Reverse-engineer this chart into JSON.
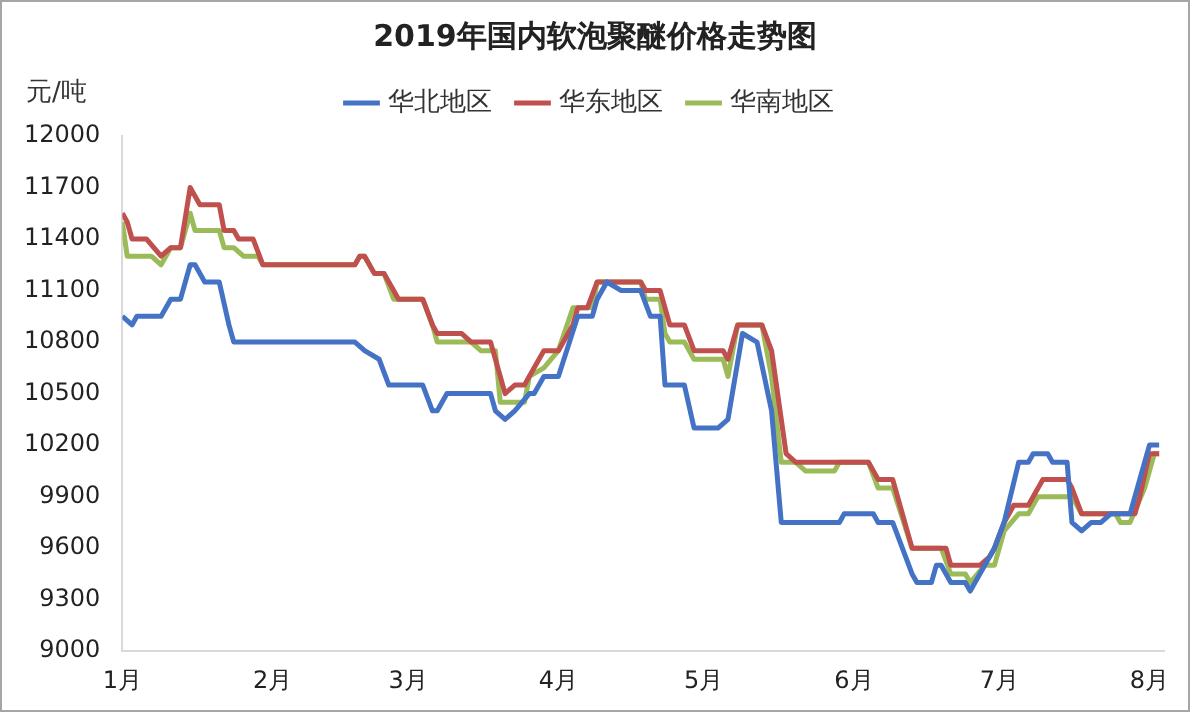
{
  "chart_data": {
    "type": "line",
    "title": "2019年国内软泡聚醚价格走势图",
    "ylabel": "元/吨",
    "xlim": [
      "2019-01-01",
      "2019-08-04"
    ],
    "xticks": [
      {
        "value": "2019-01-01",
        "label": "1月"
      },
      {
        "value": "2019-02-01",
        "label": "2月"
      },
      {
        "value": "2019-03-01",
        "label": "3月"
      },
      {
        "value": "2019-04-01",
        "label": "4月"
      },
      {
        "value": "2019-05-01",
        "label": "5月"
      },
      {
        "value": "2019-06-01",
        "label": "6月"
      },
      {
        "value": "2019-07-01",
        "label": "7月"
      },
      {
        "value": "2019-08-01",
        "label": "8月"
      }
    ],
    "ylim": [
      9000,
      12000
    ],
    "yticks": [
      9000,
      9300,
      9600,
      9900,
      10200,
      10500,
      10800,
      11100,
      11400,
      11700,
      12000
    ],
    "legend": "top",
    "line_style": "solid",
    "series": [
      {
        "name": "华北地区",
        "color": "#4472c4",
        "x": [
          "2019-01-01",
          "2019-01-03",
          "2019-01-04",
          "2019-01-09",
          "2019-01-11",
          "2019-01-13",
          "2019-01-15",
          "2019-01-16",
          "2019-01-18",
          "2019-01-21",
          "2019-01-23",
          "2019-01-24",
          "2019-02-18",
          "2019-02-20",
          "2019-02-23",
          "2019-02-25",
          "2019-03-04",
          "2019-03-06",
          "2019-03-07",
          "2019-03-09",
          "2019-03-18",
          "2019-03-19",
          "2019-03-21",
          "2019-03-23",
          "2019-03-26",
          "2019-03-27",
          "2019-03-29",
          "2019-04-01",
          "2019-04-05",
          "2019-04-08",
          "2019-04-09",
          "2019-04-11",
          "2019-04-14",
          "2019-04-18",
          "2019-04-20",
          "2019-04-22",
          "2019-04-23",
          "2019-04-27",
          "2019-04-29",
          "2019-05-04",
          "2019-05-06",
          "2019-05-09",
          "2019-05-12",
          "2019-05-15",
          "2019-05-17",
          "2019-05-29",
          "2019-05-30",
          "2019-06-05",
          "2019-06-06",
          "2019-06-09",
          "2019-06-13",
          "2019-06-14",
          "2019-06-17",
          "2019-06-18",
          "2019-06-19",
          "2019-06-21",
          "2019-06-24",
          "2019-06-25",
          "2019-06-30",
          "2019-07-02",
          "2019-07-05",
          "2019-07-07",
          "2019-07-08",
          "2019-07-11",
          "2019-07-12",
          "2019-07-15",
          "2019-07-16",
          "2019-07-18",
          "2019-07-20",
          "2019-07-22",
          "2019-07-24",
          "2019-07-28",
          "2019-07-30",
          "2019-08-01",
          "2019-08-03"
        ],
        "values": [
          10950,
          10900,
          10950,
          10950,
          11050,
          11050,
          11250,
          11250,
          11150,
          11150,
          10900,
          10800,
          10800,
          10750,
          10700,
          10550,
          10550,
          10400,
          10400,
          10500,
          10500,
          10400,
          10350,
          10400,
          10500,
          10500,
          10600,
          10600,
          10950,
          10950,
          11050,
          11150,
          11100,
          11100,
          10950,
          10950,
          10550,
          10550,
          10300,
          10300,
          10350,
          10850,
          10800,
          10400,
          9750,
          9750,
          9800,
          9800,
          9750,
          9750,
          9450,
          9400,
          9400,
          9500,
          9500,
          9400,
          9400,
          9350,
          9600,
          9750,
          10100,
          10100,
          10150,
          10150,
          10100,
          10100,
          9750,
          9700,
          9750,
          9750,
          9800,
          9800,
          10000,
          10200,
          10200
        ]
      },
      {
        "name": "华东地区",
        "color": "#c0504d",
        "x": [
          "2019-01-01",
          "2019-01-02",
          "2019-01-03",
          "2019-01-06",
          "2019-01-09",
          "2019-01-11",
          "2019-01-13",
          "2019-01-15",
          "2019-01-17",
          "2019-01-21",
          "2019-01-22",
          "2019-01-24",
          "2019-01-25",
          "2019-01-28",
          "2019-01-30",
          "2019-02-18",
          "2019-02-19",
          "2019-02-20",
          "2019-02-22",
          "2019-02-24",
          "2019-02-26",
          "2019-02-27",
          "2019-03-04",
          "2019-03-06",
          "2019-03-07",
          "2019-03-12",
          "2019-03-14",
          "2019-03-18",
          "2019-03-20",
          "2019-03-21",
          "2019-03-23",
          "2019-03-25",
          "2019-03-27",
          "2019-03-29",
          "2019-04-01",
          "2019-04-04",
          "2019-04-05",
          "2019-04-07",
          "2019-04-09",
          "2019-04-18",
          "2019-04-19",
          "2019-04-22",
          "2019-04-24",
          "2019-04-27",
          "2019-04-29",
          "2019-05-05",
          "2019-05-06",
          "2019-05-08",
          "2019-05-13",
          "2019-05-15",
          "2019-05-18",
          "2019-05-20",
          "2019-06-04",
          "2019-06-06",
          "2019-06-09",
          "2019-06-13",
          "2019-06-20",
          "2019-06-21",
          "2019-06-27",
          "2019-06-29",
          "2019-06-30",
          "2019-07-02",
          "2019-07-04",
          "2019-07-07",
          "2019-07-10",
          "2019-07-15",
          "2019-07-16",
          "2019-07-18",
          "2019-07-29",
          "2019-07-30",
          "2019-08-01",
          "2019-08-03"
        ],
        "values": [
          11550,
          11500,
          11400,
          11400,
          11300,
          11350,
          11350,
          11700,
          11600,
          11600,
          11450,
          11450,
          11400,
          11400,
          11250,
          11250,
          11300,
          11300,
          11200,
          11200,
          11100,
          11050,
          11050,
          10900,
          10850,
          10850,
          10800,
          10800,
          10600,
          10500,
          10550,
          10550,
          10650,
          10750,
          10750,
          10900,
          11000,
          11000,
          11150,
          11150,
          11100,
          11100,
          10900,
          10900,
          10750,
          10750,
          10700,
          10900,
          10900,
          10750,
          10150,
          10100,
          10100,
          10000,
          10000,
          9600,
          9600,
          9500,
          9500,
          9550,
          9600,
          9750,
          9850,
          9850,
          10000,
          10000,
          9950,
          9800,
          9800,
          9900,
          10150,
          10150
        ]
      },
      {
        "name": "华南地区",
        "color": "#9bbb59",
        "x": [
          "2019-01-01",
          "2019-01-02",
          "2019-01-07",
          "2019-01-09",
          "2019-01-11",
          "2019-01-13",
          "2019-01-15",
          "2019-01-16",
          "2019-01-21",
          "2019-01-22",
          "2019-01-24",
          "2019-01-26",
          "2019-01-29",
          "2019-01-30",
          "2019-02-18",
          "2019-02-19",
          "2019-02-20",
          "2019-02-22",
          "2019-02-24",
          "2019-02-26",
          "2019-03-04",
          "2019-03-06",
          "2019-03-07",
          "2019-03-14",
          "2019-03-16",
          "2019-03-19",
          "2019-03-20",
          "2019-03-25",
          "2019-03-26",
          "2019-03-29",
          "2019-04-01",
          "2019-04-04",
          "2019-04-08",
          "2019-04-09",
          "2019-04-18",
          "2019-04-19",
          "2019-04-22",
          "2019-04-23",
          "2019-04-24",
          "2019-04-27",
          "2019-04-29",
          "2019-05-05",
          "2019-05-06",
          "2019-05-08",
          "2019-05-13",
          "2019-05-15",
          "2019-05-17",
          "2019-05-20",
          "2019-05-22",
          "2019-05-28",
          "2019-05-29",
          "2019-06-04",
          "2019-06-06",
          "2019-06-09",
          "2019-06-13",
          "2019-06-19",
          "2019-06-21",
          "2019-06-24",
          "2019-06-25",
          "2019-06-28",
          "2019-06-30",
          "2019-07-02",
          "2019-07-05",
          "2019-07-07",
          "2019-07-09",
          "2019-07-16",
          "2019-07-18",
          "2019-07-25",
          "2019-07-26",
          "2019-07-28",
          "2019-07-31",
          "2019-08-02",
          "2019-08-03"
        ],
        "values": [
          11500,
          11300,
          11300,
          11250,
          11350,
          11350,
          11550,
          11450,
          11450,
          11350,
          11350,
          11300,
          11300,
          11250,
          11250,
          11300,
          11300,
          11200,
          11200,
          11050,
          11050,
          10900,
          10800,
          10800,
          10750,
          10750,
          10450,
          10450,
          10600,
          10650,
          10750,
          11000,
          11000,
          11150,
          11150,
          11050,
          11050,
          10850,
          10800,
          10800,
          10700,
          10700,
          10600,
          10900,
          10900,
          10600,
          10100,
          10100,
          10050,
          10050,
          10100,
          10100,
          9950,
          9950,
          9600,
          9600,
          9450,
          9450,
          9400,
          9500,
          9500,
          9700,
          9800,
          9800,
          9900,
          9900,
          9800,
          9800,
          9750,
          9750,
          9950,
          10150,
          10150
        ]
      }
    ]
  }
}
